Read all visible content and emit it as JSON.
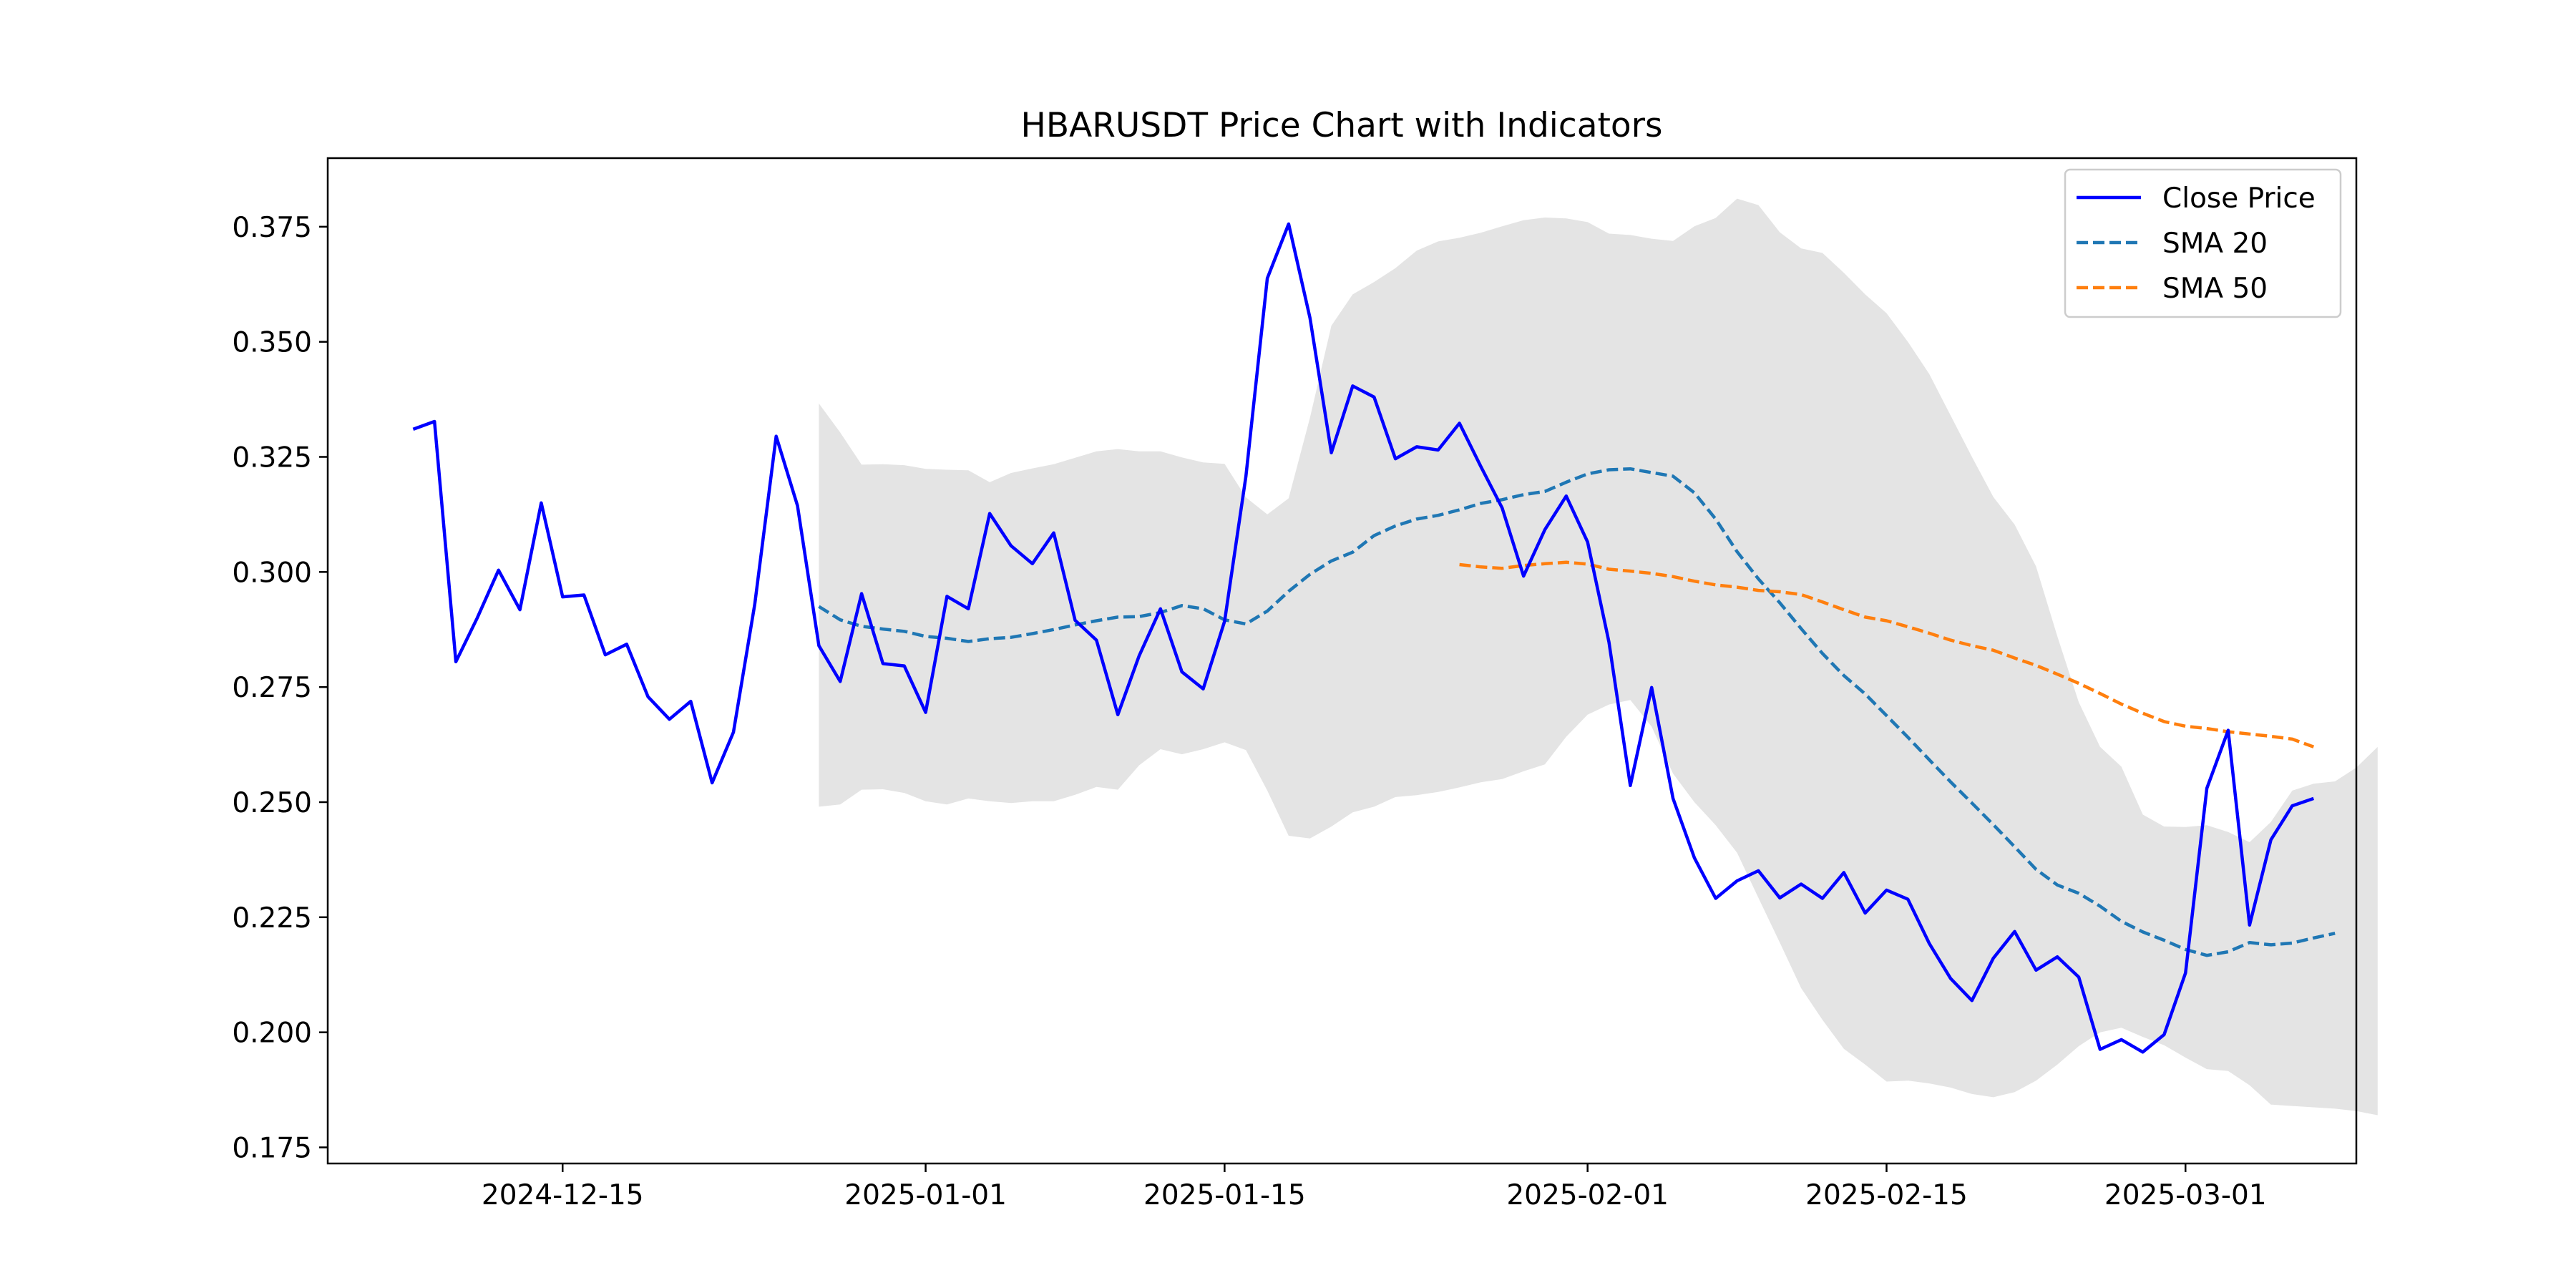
{
  "chart_data": {
    "type": "line",
    "title": "HBARUSDT Price Chart with Indicators",
    "xlabel": "",
    "ylabel": "",
    "x_start": "2024-12-08",
    "x_end": "2025-03-06",
    "xlim": [
      "2024-12-04",
      "2025-03-09"
    ],
    "ylim": [
      0.1715,
      0.3899
    ],
    "grid": false,
    "legend_position": "top-right",
    "x_ticks": [
      "2024-12-15",
      "2025-01-01",
      "2025-01-15",
      "2025-02-01",
      "2025-02-15",
      "2025-03-01"
    ],
    "y_ticks": [
      "0.175",
      "0.200",
      "0.225",
      "0.250",
      "0.275",
      "0.300",
      "0.325",
      "0.350",
      "0.375"
    ],
    "series": [
      {
        "name": "Close Price",
        "style": "solid",
        "color": "#0000ff",
        "start": "2024-12-08",
        "values": [
          0.331,
          0.3327,
          0.2805,
          0.29,
          0.3004,
          0.2918,
          0.315,
          0.2946,
          0.295,
          0.282,
          0.2843,
          0.2729,
          0.268,
          0.2719,
          0.2542,
          0.2652,
          0.293,
          0.3295,
          0.3144,
          0.284,
          0.2762,
          0.2953,
          0.2801,
          0.2796,
          0.2695,
          0.2947,
          0.292,
          0.3127,
          0.3057,
          0.3018,
          0.3085,
          0.2895,
          0.2852,
          0.269,
          0.2818,
          0.292,
          0.2783,
          0.2746,
          0.2893,
          0.3208,
          0.3638,
          0.3756,
          0.3552,
          0.3259,
          0.3404,
          0.338,
          0.3246,
          0.3272,
          0.3265,
          0.3323,
          0.3229,
          0.3139,
          0.2991,
          0.3092,
          0.3165,
          0.3065,
          0.2848,
          0.2536,
          0.2749,
          0.2508,
          0.2379,
          0.2291,
          0.2329,
          0.2351,
          0.2292,
          0.2322,
          0.2291,
          0.2347,
          0.2259,
          0.2309,
          0.2289,
          0.2193,
          0.2117,
          0.2069,
          0.2161,
          0.2219,
          0.2135,
          0.2164,
          0.212,
          0.1963,
          0.1984,
          0.1957,
          0.1995,
          0.2129,
          0.253,
          0.2656,
          0.2233,
          0.2418,
          0.2492,
          0.2508
        ]
      },
      {
        "name": "SMA 20",
        "style": "dashed",
        "color": "#1f77b4",
        "start": "2024-12-27",
        "values": [
          0.2925,
          0.2896,
          0.2882,
          0.2876,
          0.2871,
          0.286,
          0.2856,
          0.2849,
          0.2855,
          0.2858,
          0.2866,
          0.2875,
          0.2885,
          0.2894,
          0.2902,
          0.2903,
          0.2912,
          0.2927,
          0.292,
          0.2896,
          0.2887,
          0.2915,
          0.2958,
          0.2995,
          0.3024,
          0.3043,
          0.3079,
          0.31,
          0.3115,
          0.3123,
          0.3135,
          0.3149,
          0.3157,
          0.3168,
          0.3175,
          0.3195,
          0.3213,
          0.3222,
          0.3224,
          0.3216,
          0.3208,
          0.3172,
          0.3115,
          0.3044,
          0.2985,
          0.2933,
          0.2877,
          0.2823,
          0.2775,
          0.2735,
          0.2688,
          0.2641,
          0.2592,
          0.2544,
          0.2498,
          0.2451,
          0.2403,
          0.2354,
          0.232,
          0.2302,
          0.2274,
          0.2241,
          0.2218,
          0.22,
          0.218,
          0.2167,
          0.2175,
          0.2195,
          0.219,
          0.2194,
          0.2205,
          0.2215
        ]
      },
      {
        "name": "SMA 50",
        "style": "dashed",
        "color": "#ff7f0e",
        "start": "2025-01-26",
        "values": [
          0.3016,
          0.3011,
          0.3008,
          0.3014,
          0.3018,
          0.3021,
          0.3017,
          0.3006,
          0.3002,
          0.2997,
          0.299,
          0.298,
          0.2972,
          0.2967,
          0.296,
          0.2957,
          0.2951,
          0.2935,
          0.2918,
          0.2902,
          0.2894,
          0.2881,
          0.2867,
          0.2852,
          0.284,
          0.283,
          0.2813,
          0.2797,
          0.2778,
          0.2758,
          0.2736,
          0.2713,
          0.2693,
          0.2675,
          0.2665,
          0.266,
          0.2653,
          0.2648,
          0.2643,
          0.2637,
          0.262
        ]
      }
    ],
    "band": {
      "start": "2024-12-27",
      "color": "#e4e4e4",
      "upper": [
        0.3366,
        0.3303,
        0.3233,
        0.3234,
        0.3232,
        0.3224,
        0.3222,
        0.3221,
        0.3195,
        0.3215,
        0.3225,
        0.3234,
        0.3248,
        0.3262,
        0.3267,
        0.3262,
        0.3262,
        0.3249,
        0.3238,
        0.3235,
        0.3162,
        0.3125,
        0.316,
        0.3335,
        0.3535,
        0.3603,
        0.363,
        0.366,
        0.3698,
        0.3718,
        0.3726,
        0.3737,
        0.3751,
        0.3764,
        0.377,
        0.3768,
        0.376,
        0.3735,
        0.3732,
        0.3724,
        0.3719,
        0.3751,
        0.3769,
        0.3811,
        0.3797,
        0.3738,
        0.3703,
        0.3693,
        0.365,
        0.3603,
        0.3562,
        0.35,
        0.343,
        0.334,
        0.325,
        0.3163,
        0.3103,
        0.3012,
        0.286,
        0.2717,
        0.262,
        0.2577,
        0.2473,
        0.2447,
        0.2446,
        0.245,
        0.2435,
        0.2413,
        0.2457,
        0.2525,
        0.254,
        0.2545,
        0.2575,
        0.262
      ],
      "lower": [
        0.249,
        0.2495,
        0.2527,
        0.2528,
        0.252,
        0.2502,
        0.2495,
        0.2508,
        0.2502,
        0.2498,
        0.2502,
        0.2502,
        0.2516,
        0.2533,
        0.2527,
        0.258,
        0.2615,
        0.2604,
        0.2615,
        0.263,
        0.2613,
        0.2525,
        0.2427,
        0.2421,
        0.2447,
        0.2478,
        0.249,
        0.2511,
        0.2515,
        0.2522,
        0.2532,
        0.2543,
        0.255,
        0.2567,
        0.2582,
        0.2642,
        0.269,
        0.2712,
        0.2722,
        0.2664,
        0.2562,
        0.25,
        0.245,
        0.239,
        0.2292,
        0.2195,
        0.2096,
        0.2027,
        0.1964,
        0.193,
        0.1893,
        0.1895,
        0.1889,
        0.188,
        0.1866,
        0.1859,
        0.187,
        0.1895,
        0.193,
        0.197,
        0.2,
        0.201,
        0.199,
        0.1972,
        0.1945,
        0.192,
        0.1916,
        0.1885,
        0.1843,
        0.184,
        0.1837,
        0.1834,
        0.1829,
        0.182
      ]
    }
  }
}
